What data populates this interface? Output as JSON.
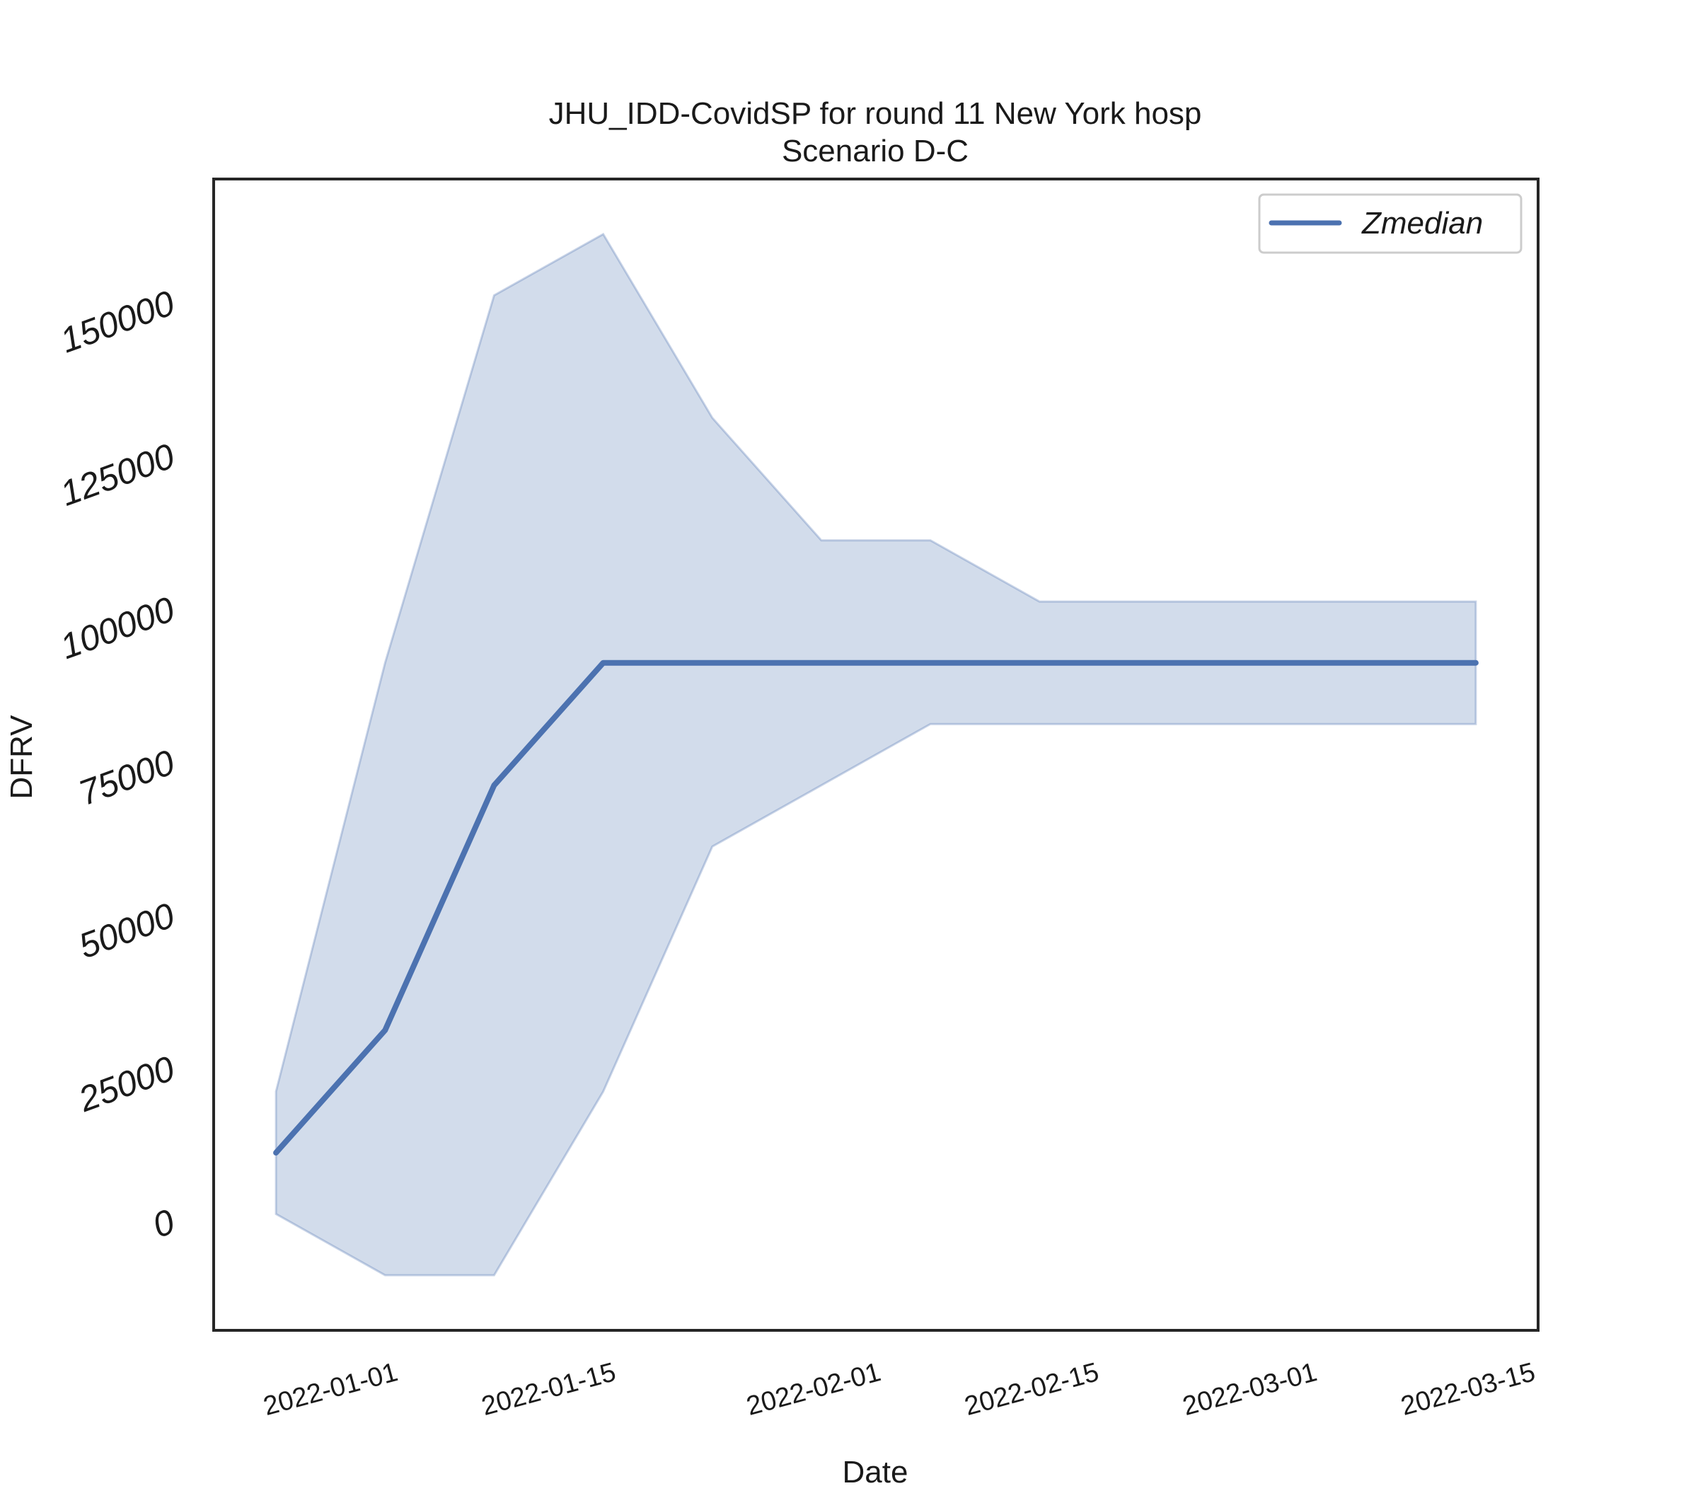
{
  "chart_data": {
    "type": "line",
    "title": "JHU_IDD-CovidSP for round 11 New York hosp",
    "subtitle": "Scenario D-C",
    "xlabel": "Date",
    "ylabel": "DFRV",
    "x": [
      "2021-12-25",
      "2022-01-01",
      "2022-01-08",
      "2022-01-15",
      "2022-01-22",
      "2022-01-29",
      "2022-02-05",
      "2022-02-12",
      "2022-02-19",
      "2022-02-26",
      "2022-03-05",
      "2022-03-12"
    ],
    "series": [
      {
        "name": "Zmedian",
        "values": [
          11000,
          31000,
          71000,
          91000,
          91000,
          91000,
          91000,
          91000,
          91000,
          91000,
          91000,
          91000
        ]
      }
    ],
    "band": {
      "lower": [
        1000,
        -9000,
        -9000,
        21000,
        61000,
        71000,
        81000,
        81000,
        81000,
        81000,
        81000,
        81000
      ],
      "upper": [
        21000,
        91000,
        151000,
        161000,
        131000,
        111000,
        111000,
        101000,
        101000,
        101000,
        101000,
        101000
      ]
    },
    "xticks": [
      "2022-01-01",
      "2022-01-15",
      "2022-02-01",
      "2022-02-15",
      "2022-03-01",
      "2022-03-15"
    ],
    "yticks": [
      0,
      25000,
      50000,
      75000,
      100000,
      125000,
      150000
    ],
    "ytick_labels": [
      "0",
      "25000",
      "50000",
      "75000",
      "100000",
      "125000",
      "150000"
    ],
    "xlim": [
      "2021-12-21",
      "2022-03-16"
    ],
    "ylim": [
      -18000,
      170000
    ],
    "grid": false,
    "legend_position": "top-right",
    "colors": {
      "line": "#4c72b0",
      "band": "#4c72b0",
      "axes": "#262626"
    }
  }
}
